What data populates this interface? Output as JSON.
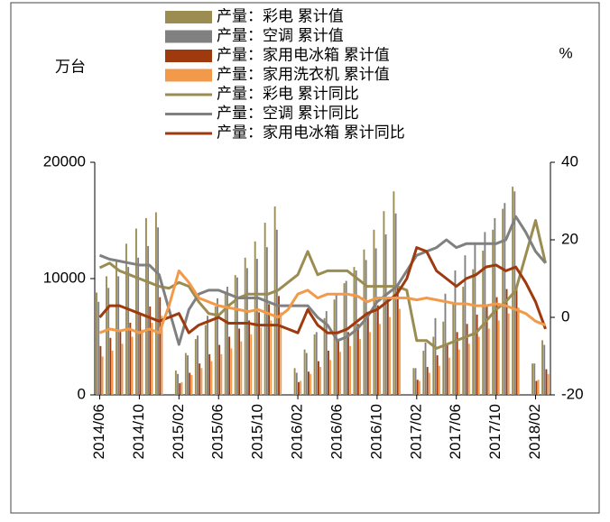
{
  "chart_data": {
    "type": "combo",
    "y_label": "万台",
    "y2_label": "%",
    "categories": [
      "2014/06",
      null,
      null,
      null,
      "2014/10",
      null,
      null,
      null,
      "2015/02",
      null,
      null,
      null,
      "2015/06",
      null,
      null,
      null,
      "2015/10",
      null,
      null,
      null,
      "2016/02",
      null,
      null,
      null,
      "2016/06",
      null,
      null,
      null,
      "2016/10",
      null,
      null,
      null,
      "2017/02",
      null,
      null,
      null,
      "2017/06",
      null,
      null,
      null,
      "2017/10",
      null,
      null,
      null,
      "2018/02",
      null
    ],
    "ylim": [
      0,
      20000
    ],
    "yticks": [
      0,
      10000,
      20000
    ],
    "y2lim": [
      -20,
      40
    ],
    "y2ticks": [
      -20,
      0,
      20,
      40
    ],
    "series": [
      {
        "name": "产量：彩电 累计值",
        "type": "bar",
        "color": "#9b8c52",
        "values": [
          8800,
          10200,
          11600,
          13000,
          14300,
          15200,
          15700,
          null,
          2100,
          3600,
          4800,
          6000,
          7600,
          8900,
          10300,
          11800,
          13200,
          14800,
          16200,
          null,
          2300,
          3900,
          5200,
          6600,
          8200,
          9600,
          11000,
          12500,
          14200,
          15800,
          17500,
          null,
          2300,
          3800,
          5000,
          6300,
          7900,
          9300,
          10800,
          12400,
          14200,
          16000,
          17900,
          null,
          2700,
          4700
        ]
      },
      {
        "name": "产量：空调 累计值",
        "type": "bar",
        "color": "#808080",
        "values": [
          8000,
          9200,
          10200,
          11000,
          11800,
          12800,
          14400,
          null,
          1800,
          3400,
          5100,
          6800,
          8300,
          9300,
          10100,
          10900,
          11700,
          12700,
          14200,
          null,
          1900,
          3600,
          5400,
          7200,
          8700,
          9800,
          10700,
          11600,
          12600,
          13800,
          15600,
          null,
          2300,
          4500,
          6600,
          8700,
          10700,
          12000,
          13000,
          14000,
          15200,
          16500,
          17500,
          null,
          2700,
          4300
        ]
      },
      {
        "name": "产量：家用电冰箱 累计值",
        "type": "bar",
        "color": "#9e3a0e",
        "values": [
          4200,
          4900,
          5500,
          6200,
          6900,
          7600,
          8400,
          null,
          1000,
          1900,
          2700,
          3500,
          4300,
          5000,
          5700,
          6400,
          7100,
          7800,
          8500,
          null,
          1100,
          2000,
          2900,
          3800,
          4700,
          5400,
          6100,
          6900,
          7700,
          8400,
          9200,
          null,
          1300,
          2400,
          3400,
          4400,
          5400,
          6100,
          6900,
          7600,
          8400,
          9100,
          9500,
          null,
          1200,
          2200
        ]
      },
      {
        "name": "产量：家用洗衣机 累计值",
        "type": "bar",
        "color": "#f39a4a",
        "values": [
          3300,
          3800,
          4400,
          5000,
          5600,
          6200,
          6800,
          null,
          1100,
          1700,
          2300,
          2900,
          3500,
          4000,
          4600,
          5200,
          5800,
          6400,
          7100,
          null,
          1200,
          1800,
          2400,
          3000,
          3700,
          4200,
          4800,
          5400,
          6100,
          6700,
          7400,
          null,
          1200,
          1900,
          2500,
          3200,
          3900,
          4400,
          5000,
          5700,
          6400,
          7000,
          7500,
          null,
          1300,
          1800
        ]
      },
      {
        "name": "产量：彩电 累计同比",
        "type": "line",
        "axis": "y2",
        "color": "#9b8c52",
        "values": [
          12.8,
          14,
          12,
          11,
          10,
          9,
          8,
          7.5,
          9,
          8,
          4,
          1,
          0.5,
          3,
          5,
          6,
          6,
          6,
          7,
          9,
          11,
          17,
          11,
          12,
          12,
          12,
          10,
          8,
          8,
          8,
          8,
          7,
          -6,
          -6,
          -8,
          -7,
          -6,
          -5,
          -4,
          -1,
          2,
          4,
          7,
          16,
          25,
          14
        ]
      },
      {
        "name": "产量：空调 累计同比",
        "type": "line",
        "axis": "y2",
        "color": "#808080",
        "values": [
          16,
          15,
          14.5,
          14,
          13.5,
          13.5,
          11,
          2,
          -7,
          2,
          6,
          7,
          7,
          6,
          5,
          5,
          5,
          4,
          3,
          3,
          3,
          3,
          0,
          -2,
          -6,
          -5,
          -3,
          0,
          4,
          6,
          8,
          12,
          16,
          17,
          18,
          20,
          18,
          19,
          19,
          19,
          19,
          20,
          26,
          22,
          17,
          14
        ]
      },
      {
        "name": "产量：家用电冰箱 累计同比",
        "type": "line",
        "axis": "y2",
        "color": "#9e3a0e",
        "values": [
          0,
          3,
          3,
          2,
          1,
          0,
          -1,
          0,
          1,
          -4,
          -2,
          -1,
          0,
          -1.5,
          -1.5,
          -1.5,
          -2,
          -2,
          -2,
          -3,
          -4,
          2,
          -2,
          -4,
          -4,
          -3,
          -1,
          1,
          2,
          4,
          6,
          10,
          18,
          17,
          12,
          10,
          8,
          10,
          11,
          13,
          13.5,
          12,
          13,
          9,
          4,
          -3
        ]
      },
      {
        "type": "line",
        "axis": "y2",
        "color": "#f39a4a",
        "values": [
          -4,
          -3,
          -3.5,
          -3,
          -4,
          -3,
          -4,
          3,
          12,
          9,
          5,
          4,
          3,
          2.5,
          2,
          1.5,
          2,
          1,
          0,
          2,
          6,
          7,
          5,
          6,
          6,
          6,
          5.5,
          4,
          5,
          5,
          5,
          5,
          4.5,
          5,
          4.5,
          4,
          3.5,
          3.5,
          3,
          3,
          3.5,
          3,
          2,
          1,
          -1,
          -2
        ]
      }
    ]
  }
}
